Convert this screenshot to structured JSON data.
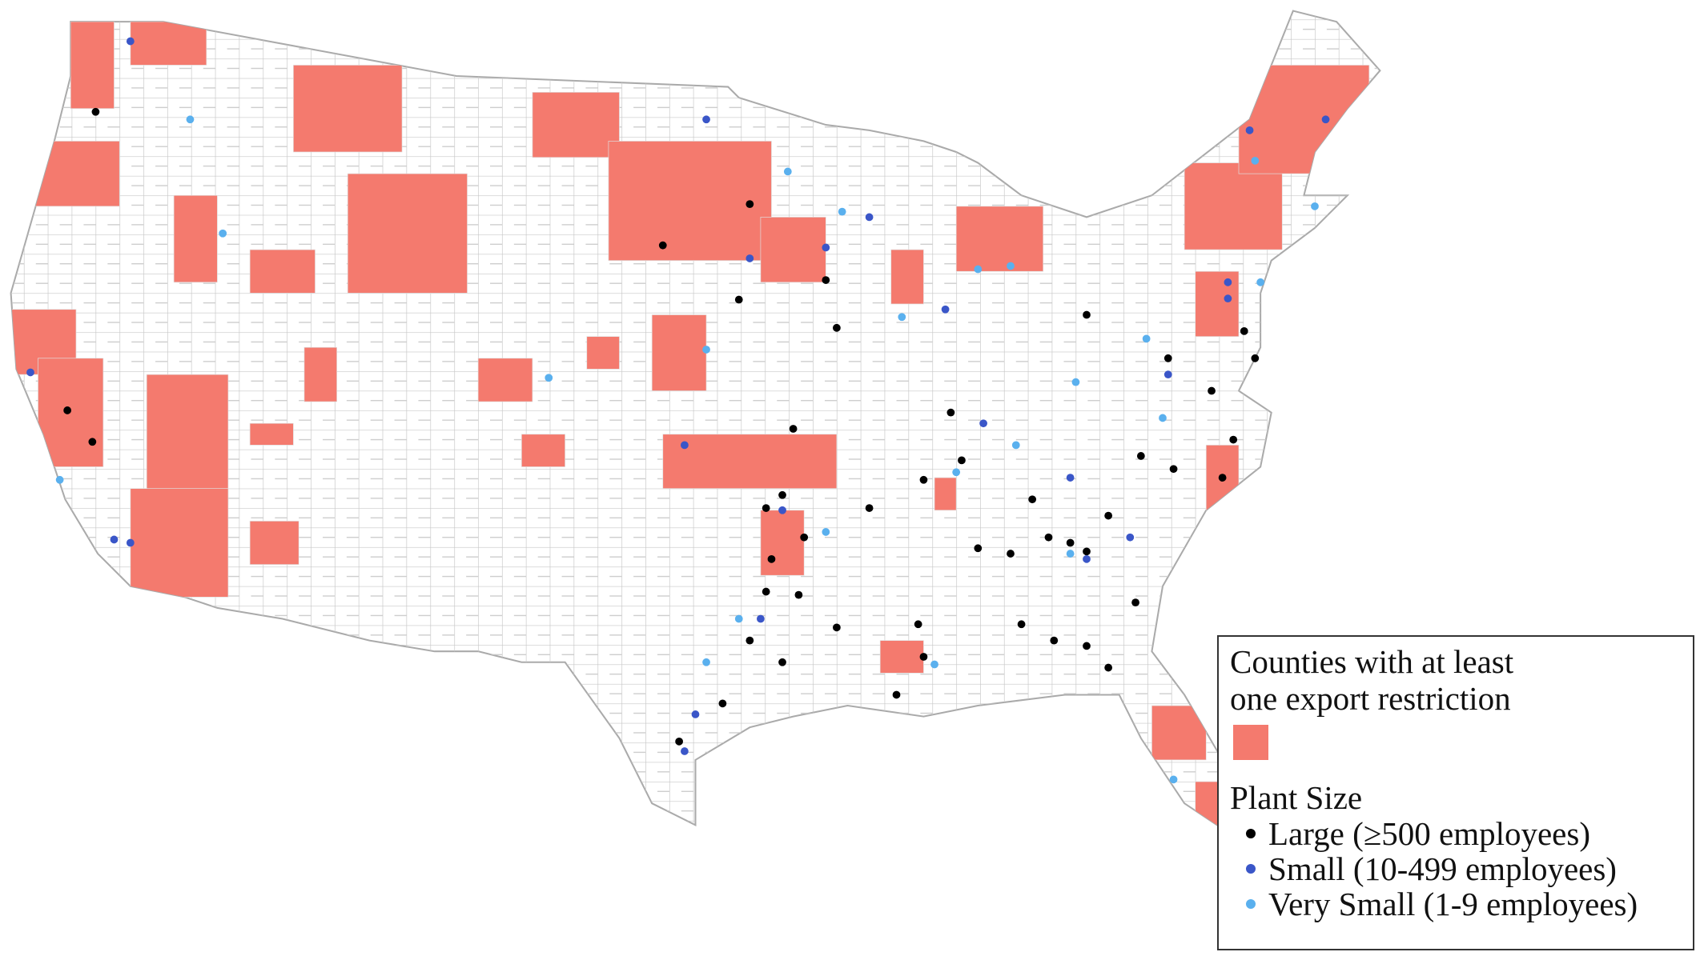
{
  "legend": {
    "counties_title": "Counties with at least one export restriction",
    "counties_color": "#f47a6e",
    "plant_size_title": "Plant Size",
    "items": [
      {
        "label": "Large (≥500 employees)",
        "color": "#000000"
      },
      {
        "label": "Small (10-499 employees)",
        "color": "#3a56c8"
      },
      {
        "label": "Very Small (1-9 employees)",
        "color": "#5ab0ee"
      }
    ]
  }
}
